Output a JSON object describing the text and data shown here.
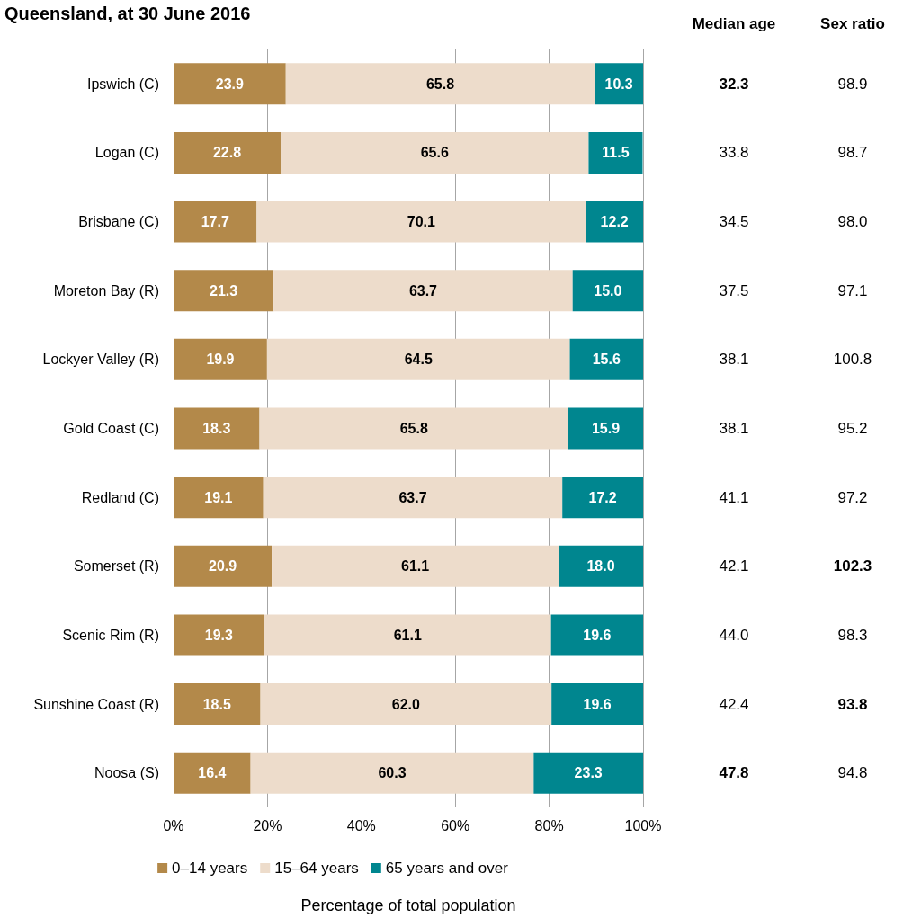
{
  "chart_data": [
    {
      "type": "bar",
      "title": "Queensland, at 30 June 2016",
      "orientation": "horizontal",
      "stacked": true,
      "grid": "x",
      "legend": "bottom",
      "xlabel": "Percentage of total population",
      "categories": [
        "Ipswich (C)",
        "Logan (C)",
        "Brisbane (C)",
        "Moreton Bay (R)",
        "Lockyer Valley (R)",
        "Gold Coast (C)",
        "Redland (C)",
        "Somerset (R)",
        "Scenic Rim (R)",
        "Sunshine Coast (R)",
        "Noosa (S)"
      ],
      "xlim": [
        0,
        100
      ],
      "xticks": [
        {
          "value": 0,
          "label": "0%"
        },
        {
          "value": 20,
          "label": "20%"
        },
        {
          "value": 40,
          "label": "40%"
        },
        {
          "value": 60,
          "label": "60%"
        },
        {
          "value": 80,
          "label": "80%"
        },
        {
          "value": 100,
          "label": "100%"
        }
      ],
      "series": [
        {
          "name": "0–14 years",
          "color": "#b3894a",
          "values": [
            23.9,
            22.8,
            17.7,
            21.3,
            19.9,
            18.3,
            19.1,
            20.9,
            19.3,
            18.5,
            16.4
          ],
          "value_labels": [
            "23.9",
            "22.8",
            "17.7",
            "21.3",
            "19.9",
            "18.3",
            "19.1",
            "20.9",
            "19.3",
            "18.5",
            "16.4"
          ]
        },
        {
          "name": "15–64 years",
          "color": "#eddccb",
          "values": [
            65.8,
            65.6,
            70.1,
            63.7,
            64.5,
            65.8,
            63.7,
            61.1,
            61.1,
            62.0,
            60.3
          ],
          "value_labels": [
            "65.8",
            "65.6",
            "70.1",
            "63.7",
            "64.5",
            "65.8",
            "63.7",
            "61.1",
            "61.1",
            "62.0",
            "60.3"
          ]
        },
        {
          "name": "65 years and over",
          "color": "#00868f",
          "values": [
            10.3,
            11.5,
            12.2,
            15.0,
            15.6,
            15.9,
            17.2,
            18.0,
            19.6,
            19.6,
            23.3
          ],
          "value_labels": [
            "10.3",
            "11.5",
            "12.2",
            "15.0",
            "15.6",
            "15.9",
            "17.2",
            "18.0",
            "19.6",
            "19.6",
            "23.3"
          ]
        }
      ]
    },
    {
      "type": "heatmap",
      "categories": [
        "Median age",
        "Sex ratio"
      ],
      "y_categories": [
        null,
        null,
        null,
        null,
        null,
        null,
        null,
        null,
        null,
        null,
        null
      ],
      "cells": [
        [
          32.3,
          98.9
        ],
        [
          33.8,
          98.7
        ],
        [
          34.5,
          98.0
        ],
        [
          37.5,
          97.1
        ],
        [
          38.1,
          100.8
        ],
        [
          38.1,
          95.2
        ],
        [
          41.1,
          97.2
        ],
        [
          42.1,
          102.3
        ],
        [
          44.0,
          98.3
        ],
        [
          42.4,
          93.8
        ],
        [
          47.8,
          94.8
        ]
      ],
      "cell_labels": [
        [
          "32.3",
          "98.9"
        ],
        [
          "33.8",
          "98.7"
        ],
        [
          "34.5",
          "98.0"
        ],
        [
          "37.5",
          "97.1"
        ],
        [
          "38.1",
          "100.8"
        ],
        [
          "38.1",
          "95.2"
        ],
        [
          "41.1",
          "97.2"
        ],
        [
          "42.1",
          "102.3"
        ],
        [
          "44.0",
          "98.3"
        ],
        [
          "42.4",
          "93.8"
        ],
        [
          "47.8",
          "94.8"
        ]
      ]
    }
  ]
}
